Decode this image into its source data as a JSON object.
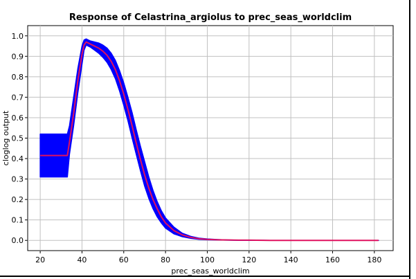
{
  "chart_data": {
    "type": "line",
    "title": "Response of Celastrina_argiolus to prec_seas_worldclim",
    "xlabel": "prec_seas_worldclim",
    "ylabel": "cloglog output",
    "xlim": [
      14,
      189
    ],
    "ylim": [
      -0.05,
      1.05
    ],
    "x_ticks": [
      20,
      40,
      60,
      80,
      100,
      120,
      140,
      160,
      180
    ],
    "y_ticks": [
      0.0,
      0.1,
      0.2,
      0.3,
      0.4,
      0.5,
      0.6,
      0.7,
      0.8,
      0.9,
      1.0
    ],
    "x_tick_labels": [
      "20",
      "40",
      "60",
      "80",
      "100",
      "120",
      "140",
      "160",
      "180"
    ],
    "y_tick_labels": [
      "0.0",
      "0.1",
      "0.2",
      "0.3",
      "0.4",
      "0.5",
      "0.6",
      "0.7",
      "0.8",
      "0.9",
      "1.0"
    ],
    "grid": true,
    "series": [
      {
        "role": "mean",
        "color": "#e0115f",
        "x": [
          20,
          33,
          34,
          36,
          38,
          40,
          41,
          42,
          44,
          46,
          48,
          50,
          52,
          54,
          56,
          58,
          60,
          62,
          64,
          66,
          68,
          70,
          72,
          74,
          76,
          78,
          80,
          84,
          88,
          92,
          96,
          100,
          105,
          110,
          115,
          120,
          130,
          140,
          160,
          182
        ],
        "y": [
          0.415,
          0.415,
          0.48,
          0.62,
          0.78,
          0.91,
          0.955,
          0.97,
          0.96,
          0.95,
          0.94,
          0.925,
          0.905,
          0.875,
          0.835,
          0.78,
          0.715,
          0.64,
          0.56,
          0.475,
          0.395,
          0.32,
          0.255,
          0.2,
          0.155,
          0.115,
          0.085,
          0.048,
          0.027,
          0.015,
          0.008,
          0.005,
          0.003,
          0.002,
          0.001,
          0.001,
          0.0,
          0.0,
          0.0,
          0.0
        ]
      },
      {
        "role": "upper",
        "color": "#0000ff",
        "x": [
          20,
          33,
          34,
          36,
          38,
          40,
          41,
          42,
          44,
          46,
          48,
          50,
          52,
          54,
          56,
          58,
          60,
          62,
          64,
          66,
          68,
          70,
          72,
          74,
          76,
          78,
          80,
          84,
          88,
          92,
          96,
          100,
          105,
          110,
          115,
          120,
          130,
          140,
          160,
          182
        ],
        "y": [
          0.52,
          0.52,
          0.56,
          0.7,
          0.84,
          0.95,
          0.98,
          0.985,
          0.975,
          0.97,
          0.965,
          0.955,
          0.94,
          0.915,
          0.88,
          0.83,
          0.77,
          0.7,
          0.625,
          0.54,
          0.46,
          0.385,
          0.31,
          0.245,
          0.19,
          0.145,
          0.11,
          0.065,
          0.035,
          0.02,
          0.011,
          0.007,
          0.004,
          0.002,
          0.001,
          0.001,
          0.0,
          0.0,
          0.0,
          0.0
        ]
      },
      {
        "role": "lower",
        "color": "#0000ff",
        "x": [
          20,
          33,
          34,
          36,
          38,
          40,
          41,
          42,
          44,
          46,
          48,
          50,
          52,
          54,
          56,
          58,
          60,
          62,
          64,
          66,
          68,
          70,
          72,
          74,
          76,
          78,
          80,
          84,
          88,
          92,
          96,
          100,
          105,
          110,
          115,
          120,
          130,
          140,
          160,
          182
        ],
        "y": [
          0.31,
          0.31,
          0.42,
          0.56,
          0.72,
          0.86,
          0.93,
          0.955,
          0.945,
          0.93,
          0.915,
          0.895,
          0.87,
          0.835,
          0.79,
          0.73,
          0.66,
          0.585,
          0.5,
          0.42,
          0.34,
          0.265,
          0.205,
          0.155,
          0.115,
          0.085,
          0.06,
          0.032,
          0.018,
          0.01,
          0.005,
          0.003,
          0.002,
          0.001,
          0.0,
          0.0,
          0.0,
          0.0,
          0.0,
          0.0
        ]
      }
    ]
  }
}
